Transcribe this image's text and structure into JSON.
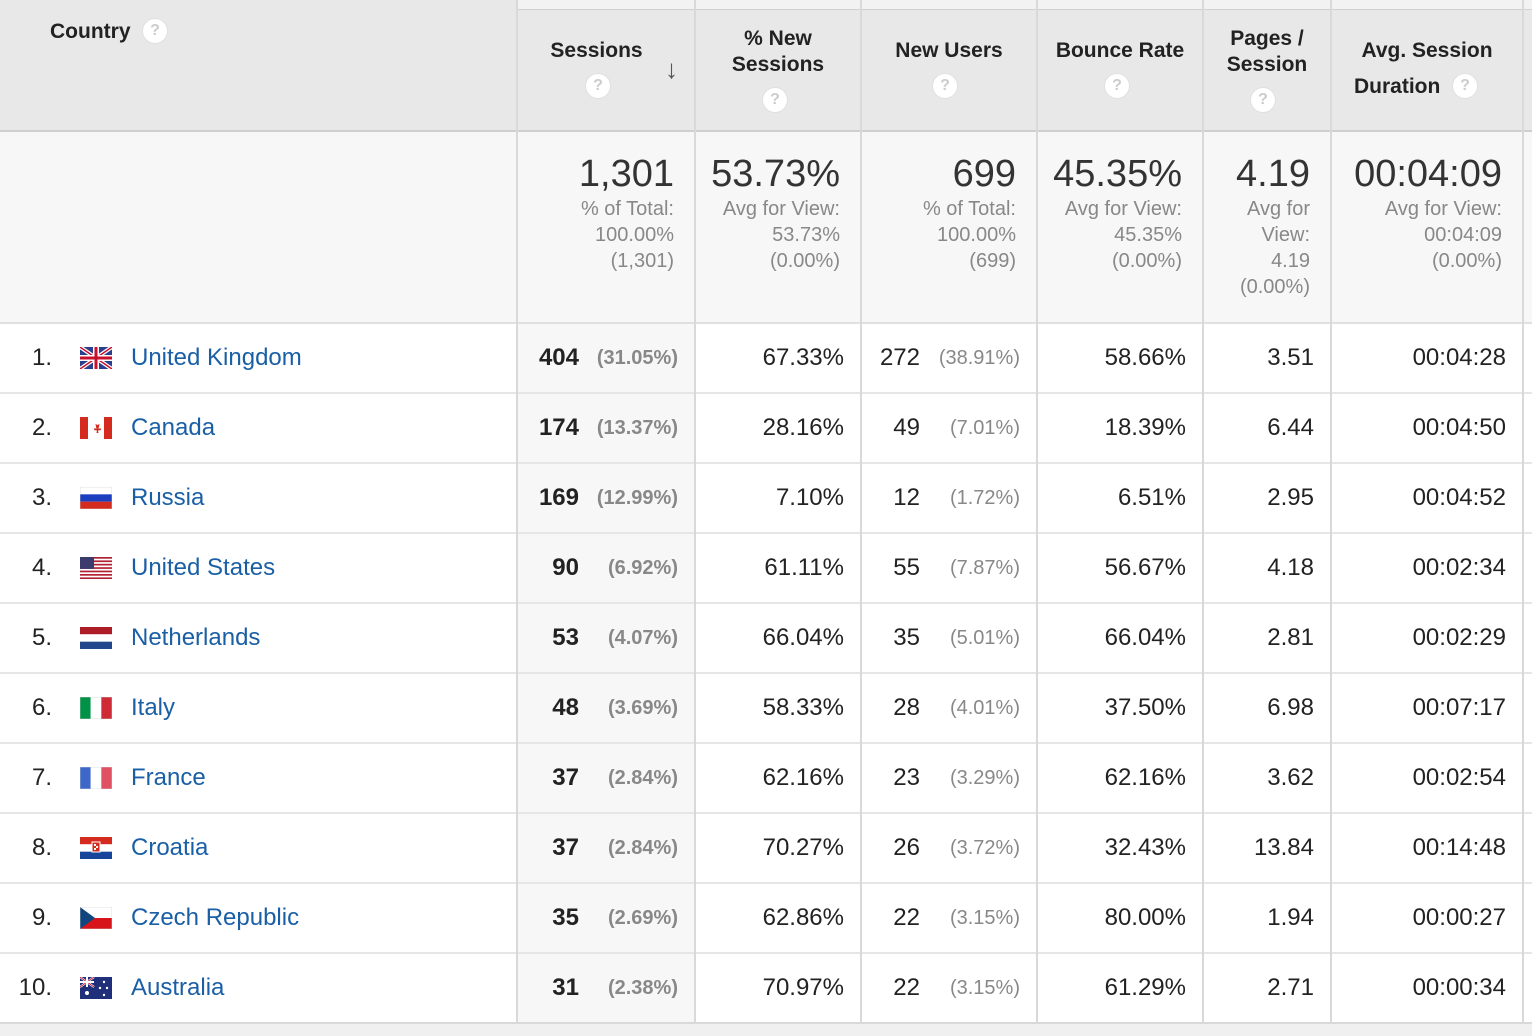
{
  "columns": {
    "country": "Country",
    "sessions": "Sessions",
    "new_sessions_line1": "% New",
    "new_sessions_line2": "Sessions",
    "new_users": "New Users",
    "bounce_rate": "Bounce Rate",
    "pages_line1": "Pages /",
    "pages_line2": "Session",
    "duration_line1": "Avg. Session",
    "duration_line2": "Duration",
    "help_glyph": "?"
  },
  "summary": {
    "sessions": {
      "value": "1,301",
      "l1": "% of Total:",
      "l2": "100.00%",
      "l3": "(1,301)"
    },
    "new_sessions": {
      "value": "53.73%",
      "l1": "Avg for View:",
      "l2": "53.73%",
      "l3": "(0.00%)"
    },
    "new_users": {
      "value": "699",
      "l1": "% of Total:",
      "l2": "100.00%",
      "l3": "(699)"
    },
    "bounce_rate": {
      "value": "45.35%",
      "l1": "Avg for View:",
      "l2": "45.35%",
      "l3": "(0.00%)"
    },
    "pages": {
      "value": "4.19",
      "l1": "Avg for",
      "l2": "View:",
      "l3": "4.19",
      "l4": "(0.00%)"
    },
    "duration": {
      "value": "00:04:09",
      "l1": "Avg for View:",
      "l2": "00:04:09",
      "l3": "(0.00%)"
    }
  },
  "rows": [
    {
      "rank": "1.",
      "country": "United Kingdom",
      "flag": "uk-flag-icon",
      "sessions": "404",
      "sessions_pct": "(31.05%)",
      "new_sessions": "67.33%",
      "new_users": "272",
      "new_users_pct": "(38.91%)",
      "bounce": "58.66%",
      "pages": "3.51",
      "duration": "00:04:28"
    },
    {
      "rank": "2.",
      "country": "Canada",
      "flag": "canada-flag-icon",
      "sessions": "174",
      "sessions_pct": "(13.37%)",
      "new_sessions": "28.16%",
      "new_users": "49",
      "new_users_pct": "(7.01%)",
      "bounce": "18.39%",
      "pages": "6.44",
      "duration": "00:04:50"
    },
    {
      "rank": "3.",
      "country": "Russia",
      "flag": "russia-flag-icon",
      "sessions": "169",
      "sessions_pct": "(12.99%)",
      "new_sessions": "7.10%",
      "new_users": "12",
      "new_users_pct": "(1.72%)",
      "bounce": "6.51%",
      "pages": "2.95",
      "duration": "00:04:52"
    },
    {
      "rank": "4.",
      "country": "United States",
      "flag": "us-flag-icon",
      "sessions": "90",
      "sessions_pct": "(6.92%)",
      "new_sessions": "61.11%",
      "new_users": "55",
      "new_users_pct": "(7.87%)",
      "bounce": "56.67%",
      "pages": "4.18",
      "duration": "00:02:34"
    },
    {
      "rank": "5.",
      "country": "Netherlands",
      "flag": "netherlands-flag-icon",
      "sessions": "53",
      "sessions_pct": "(4.07%)",
      "new_sessions": "66.04%",
      "new_users": "35",
      "new_users_pct": "(5.01%)",
      "bounce": "66.04%",
      "pages": "2.81",
      "duration": "00:02:29"
    },
    {
      "rank": "6.",
      "country": "Italy",
      "flag": "italy-flag-icon",
      "sessions": "48",
      "sessions_pct": "(3.69%)",
      "new_sessions": "58.33%",
      "new_users": "28",
      "new_users_pct": "(4.01%)",
      "bounce": "37.50%",
      "pages": "6.98",
      "duration": "00:07:17"
    },
    {
      "rank": "7.",
      "country": "France",
      "flag": "france-flag-icon",
      "sessions": "37",
      "sessions_pct": "(2.84%)",
      "new_sessions": "62.16%",
      "new_users": "23",
      "new_users_pct": "(3.29%)",
      "bounce": "62.16%",
      "pages": "3.62",
      "duration": "00:02:54"
    },
    {
      "rank": "8.",
      "country": "Croatia",
      "flag": "croatia-flag-icon",
      "sessions": "37",
      "sessions_pct": "(2.84%)",
      "new_sessions": "70.27%",
      "new_users": "26",
      "new_users_pct": "(3.72%)",
      "bounce": "32.43%",
      "pages": "13.84",
      "duration": "00:14:48"
    },
    {
      "rank": "9.",
      "country": "Czech Republic",
      "flag": "czech-flag-icon",
      "sessions": "35",
      "sessions_pct": "(2.69%)",
      "new_sessions": "62.86%",
      "new_users": "22",
      "new_users_pct": "(3.15%)",
      "bounce": "80.00%",
      "pages": "1.94",
      "duration": "00:00:27"
    },
    {
      "rank": "10.",
      "country": "Australia",
      "flag": "australia-flag-icon",
      "sessions": "31",
      "sessions_pct": "(2.38%)",
      "new_sessions": "70.97%",
      "new_users": "22",
      "new_users_pct": "(3.15%)",
      "bounce": "61.29%",
      "pages": "2.71",
      "duration": "00:00:34"
    }
  ]
}
